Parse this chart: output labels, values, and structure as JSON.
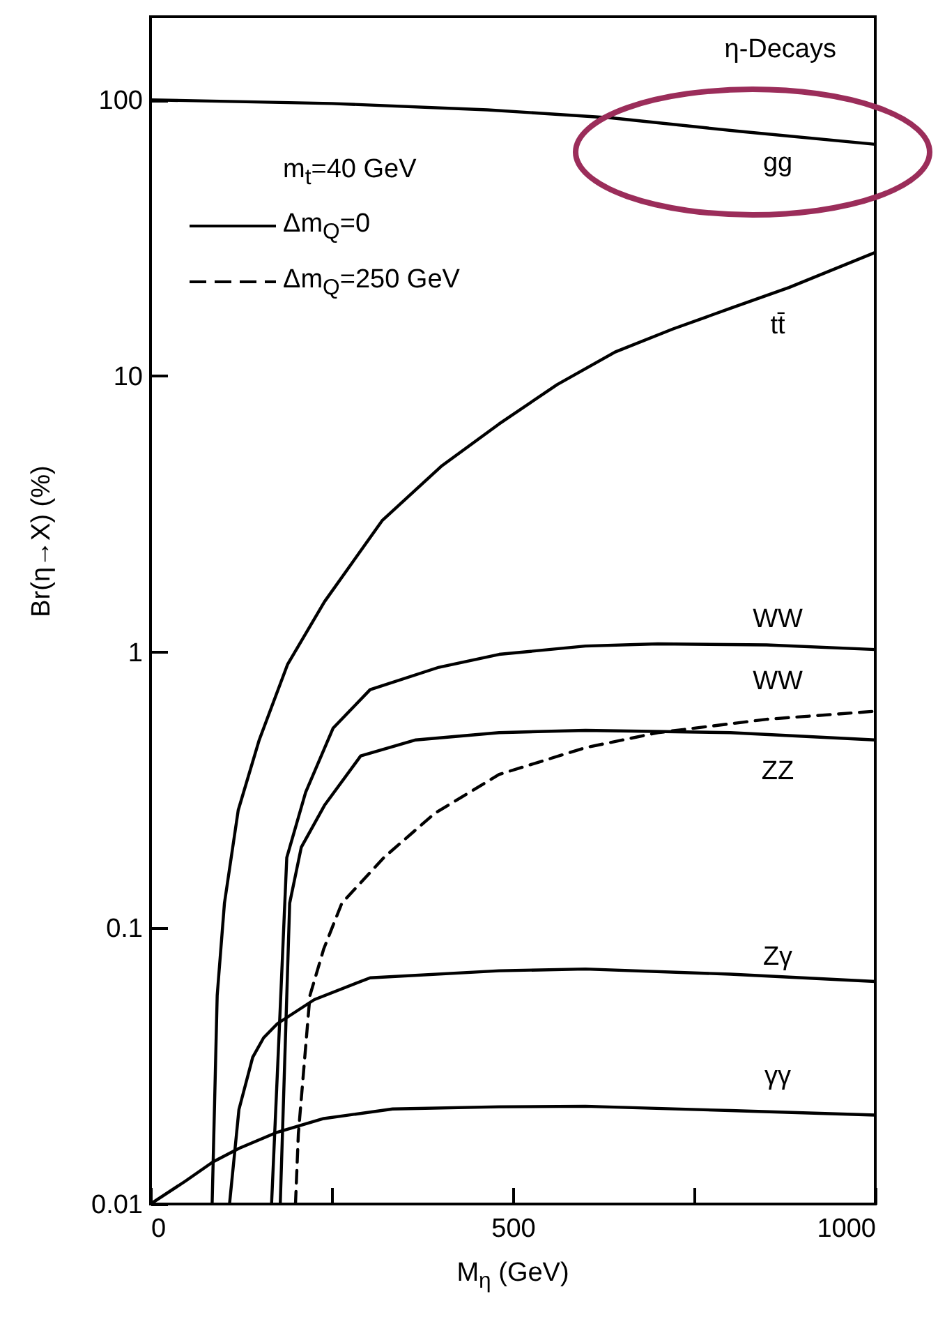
{
  "chart_data": {
    "type": "line",
    "xlabel": "M$_{η}$  (GeV)",
    "ylabel": "Br(η→X)   (%)",
    "annotations": [
      "η-Decays",
      "m$_{t}$=40 GeV",
      "Δm$_{Q}$=0",
      "Δm$_{Q}$=250 GeV"
    ],
    "log": "y",
    "xlim": [
      0,
      1000
    ],
    "ylim": [
      0.01,
      200
    ],
    "xticks": [
      0,
      {
        "value": 250,
        "label": null
      },
      500,
      {
        "value": 750,
        "label": null
      },
      1000
    ],
    "yticks": [
      0.01,
      0.1,
      1,
      10,
      100
    ],
    "grid": false,
    "marker": "none",
    "series": [
      {
        "name": "gg",
        "color": "#000000",
        "line_style": "solid",
        "x": [
          0,
          250,
          465,
          636,
          810,
          1000
        ],
        "values": [
          100,
          97,
          92,
          86,
          77,
          69
        ]
      },
      {
        "name": "tt̄",
        "color": "#000000",
        "line_style": "solid",
        "x": [
          85,
          92,
          102,
          121,
          150,
          189,
          240,
          320,
          401,
          481,
          561,
          641,
          721,
          801,
          881,
          1000
        ],
        "values": [
          0.01,
          0.057,
          0.123,
          0.267,
          0.48,
          0.9,
          1.52,
          3.0,
          4.7,
          6.7,
          9.3,
          12.2,
          14.8,
          17.6,
          20.9,
          28
        ]
      },
      {
        "name": "WW",
        "color": "#000000",
        "line_style": "solid",
        "x": [
          167,
          177,
          188,
          214,
          252,
          303,
          398,
          481,
          600,
          700,
          850,
          1000
        ],
        "values": [
          0.01,
          0.039,
          0.18,
          0.31,
          0.53,
          0.73,
          0.88,
          0.98,
          1.05,
          1.07,
          1.06,
          1.02
        ]
      },
      {
        "name": "WW",
        "color": "#000000",
        "line_style": "dashed",
        "x": [
          200,
          204,
          220,
          239,
          264,
          322,
          392,
          481,
          600,
          700,
          850,
          1000
        ],
        "values": [
          0.01,
          0.018,
          0.057,
          0.084,
          0.123,
          0.18,
          0.26,
          0.36,
          0.45,
          0.51,
          0.57,
          0.61
        ]
      },
      {
        "name": "ZZ",
        "color": "#000000",
        "line_style": "solid",
        "x": [
          179,
          192,
          208,
          240,
          290,
          366,
          481,
          600,
          800,
          1000
        ],
        "values": [
          0.01,
          0.123,
          0.196,
          0.278,
          0.42,
          0.48,
          0.51,
          0.52,
          0.51,
          0.48
        ]
      },
      {
        "name": "Zγ",
        "color": "#000000",
        "line_style": "solid",
        "x": [
          109,
          122,
          141,
          156,
          175,
          226,
          303,
          481,
          600,
          800,
          1000
        ],
        "values": [
          0.01,
          0.022,
          0.034,
          0.04,
          0.045,
          0.055,
          0.066,
          0.07,
          0.071,
          0.068,
          0.064
        ]
      },
      {
        "name": "γγ",
        "color": "#000000",
        "line_style": "solid",
        "x": [
          0,
          48,
          86,
          122,
          175,
          239,
          334,
          481,
          600,
          800,
          1000
        ],
        "values": [
          0.01,
          0.0121,
          0.0142,
          0.0159,
          0.0182,
          0.0204,
          0.0221,
          0.0225,
          0.0226,
          0.0218,
          0.021
        ]
      }
    ]
  }
}
